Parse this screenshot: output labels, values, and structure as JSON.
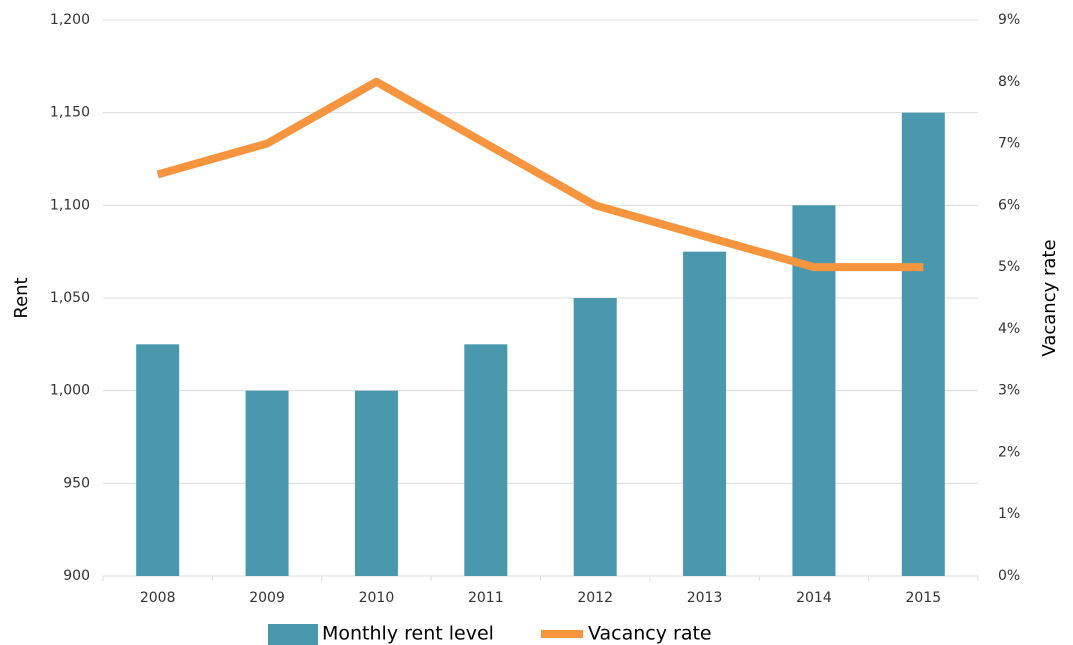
{
  "chart_data": {
    "type": "bar",
    "categories": [
      "2008",
      "2009",
      "2010",
      "2011",
      "2012",
      "2013",
      "2014",
      "2015"
    ],
    "series": [
      {
        "name": "Monthly rent level",
        "type": "bar",
        "color": "#4a98ad",
        "values": [
          1025,
          1000,
          1000,
          1025,
          1050,
          1075,
          1100,
          1150
        ]
      },
      {
        "name": "Vacancy rate",
        "type": "line",
        "axis": "y2",
        "color": "#f7953f",
        "values": [
          6.5,
          7,
          8,
          7,
          6,
          5.5,
          5,
          5
        ]
      }
    ],
    "ylabel": "Rent",
    "y2label": "Vacancy rate",
    "ylim": [
      900,
      1200
    ],
    "yticks": [
      900,
      950,
      {
        "value": 1000,
        "label": "1,000"
      },
      {
        "value": 1050,
        "label": "1,050"
      },
      {
        "value": 1100,
        "label": "1,100"
      },
      {
        "value": 1150,
        "label": "1,150"
      },
      {
        "value": 1200,
        "label": "1,200"
      }
    ],
    "y2lim": [
      0,
      9
    ],
    "y2ticks": [
      {
        "value": 0,
        "label": "0%"
      },
      {
        "value": 1,
        "label": "1%"
      },
      {
        "value": 2,
        "label": "2%"
      },
      {
        "value": 3,
        "label": "3%"
      },
      {
        "value": 4,
        "label": "4%"
      },
      {
        "value": 5,
        "label": "5%"
      },
      {
        "value": 6,
        "label": "6%"
      },
      {
        "value": 7,
        "label": "7%"
      },
      {
        "value": 8,
        "label": "8%"
      },
      {
        "value": 9,
        "label": "9%"
      }
    ],
    "grid": true
  }
}
